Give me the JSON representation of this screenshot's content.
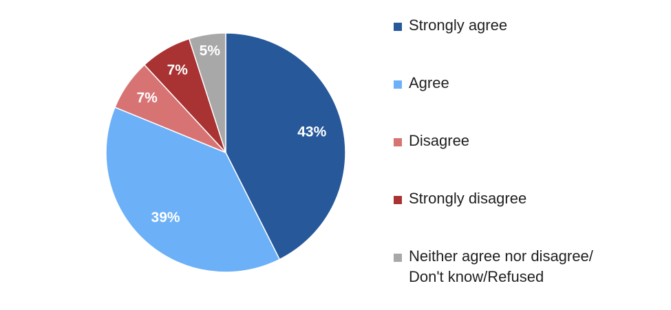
{
  "chart_data": {
    "type": "pie",
    "categories": [
      "Strongly agree",
      "Agree",
      "Disagree",
      "Strongly disagree",
      "Neither agree nor disagree/\nDon't know/Refused"
    ],
    "values": [
      43,
      39,
      7,
      7,
      5
    ],
    "labels": [
      "43%",
      "39%",
      "7%",
      "7%",
      "5%"
    ],
    "colors": [
      "#26589A",
      "#6CB0F7",
      "#D87374",
      "#A93232",
      "#A8A8A8"
    ],
    "start_angle_deg": 0,
    "direction": "clockwise",
    "legend_placement": "right"
  }
}
